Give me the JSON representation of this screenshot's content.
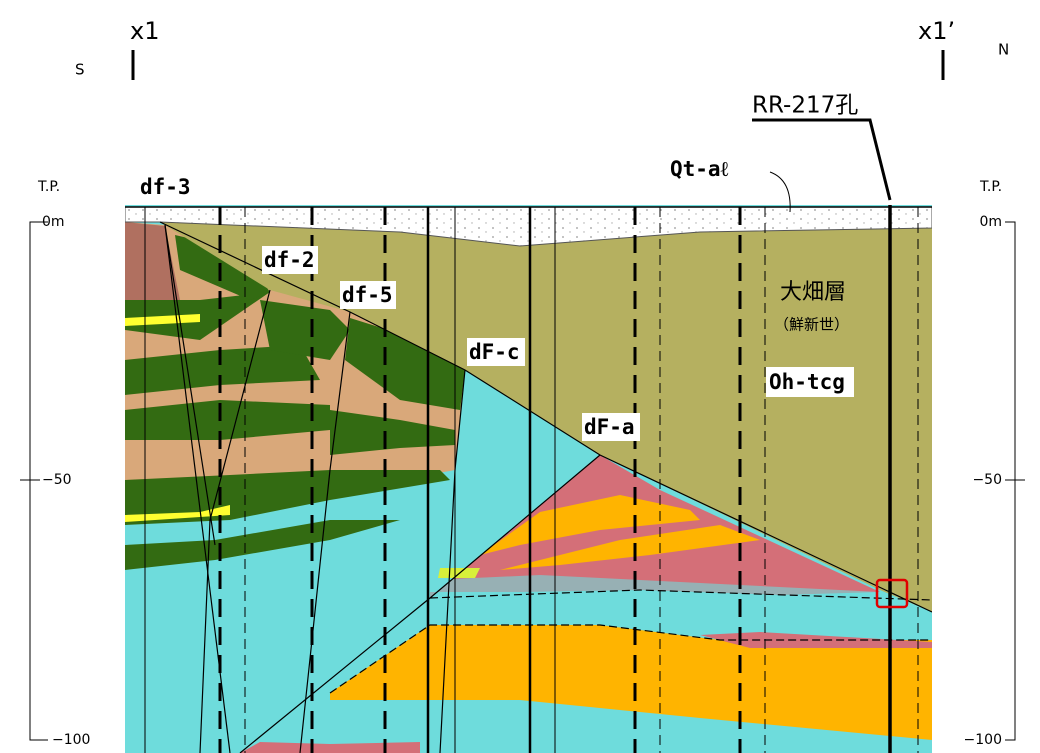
{
  "header": {
    "left_marker": "x1",
    "right_marker": "x1’",
    "left_direction": "S",
    "right_direction": "N"
  },
  "borehole": "RR-217孔",
  "scale_left": {
    "datum": "T.P.",
    "ticks": [
      "0m",
      "−50",
      "−100"
    ]
  },
  "scale_right": {
    "datum": "T.P.",
    "ticks": [
      "0m",
      "−50",
      "−100"
    ]
  },
  "faults": [
    "df-3",
    "df-2",
    "df-5",
    "dF-c",
    "dF-a"
  ],
  "units": {
    "quaternary": "Qt-aℓ",
    "formation": "大畑層",
    "age": "（鮮新世）",
    "code": "Oh-tcg"
  }
}
